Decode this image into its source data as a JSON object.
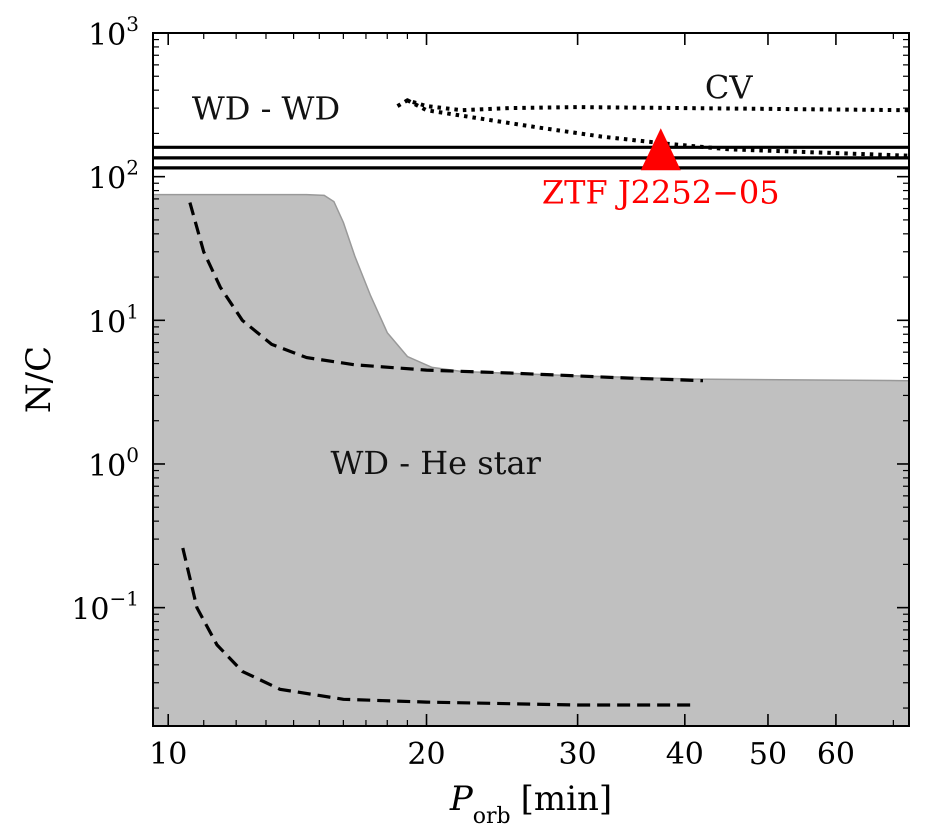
{
  "chart_data": {
    "type": "line",
    "x_scale": "log",
    "y_scale": "log",
    "xlim": [
      9.6,
      73
    ],
    "ylim": [
      0.015,
      1000
    ],
    "xlabel_main": "P",
    "xlabel_sub": "orb",
    "xlabel_unit": "[min]",
    "ylabel": "N/C",
    "x_ticks": [
      {
        "value": 10,
        "label": "10"
      },
      {
        "value": 20,
        "label": "20"
      },
      {
        "value": 30,
        "label": "30"
      },
      {
        "value": 40,
        "label": "40"
      },
      {
        "value": 50,
        "label": "50"
      },
      {
        "value": 60,
        "label": "60"
      }
    ],
    "y_ticks": [
      {
        "value": 0.1,
        "base": "10",
        "exp": "−1"
      },
      {
        "value": 1,
        "base": "10",
        "exp": "0"
      },
      {
        "value": 10,
        "base": "10",
        "exp": "1"
      },
      {
        "value": 100,
        "base": "10",
        "exp": "2"
      },
      {
        "value": 1000,
        "base": "10",
        "exp": "3"
      }
    ],
    "regions": [
      {
        "label": "WD - He star",
        "label_at": [
          20.5,
          0.85
        ],
        "fill": "#c0c0c0",
        "edge": "#999999",
        "boundary": [
          [
            9.6,
            0.015
          ],
          [
            9.6,
            75
          ],
          [
            14.5,
            75
          ],
          [
            15.2,
            74
          ],
          [
            15.6,
            67
          ],
          [
            16.0,
            48
          ],
          [
            16.5,
            28
          ],
          [
            17.2,
            15
          ],
          [
            18.0,
            8.2
          ],
          [
            19.0,
            5.6
          ],
          [
            20.3,
            4.7
          ],
          [
            22,
            4.4
          ],
          [
            30,
            4.1
          ],
          [
            41,
            3.9
          ],
          [
            73,
            3.8
          ],
          [
            73,
            0.015
          ]
        ]
      }
    ],
    "series": [
      {
        "style": "dashed",
        "color": "#000000",
        "points": [
          [
            10.6,
            66
          ],
          [
            11.0,
            30
          ],
          [
            11.5,
            17
          ],
          [
            12.2,
            10
          ],
          [
            13.2,
            6.8
          ],
          [
            14.5,
            5.5
          ],
          [
            16.5,
            4.9
          ],
          [
            20,
            4.5
          ],
          [
            25,
            4.3
          ],
          [
            33,
            4.0
          ],
          [
            42,
            3.8
          ]
        ]
      },
      {
        "style": "dashed",
        "color": "#000000",
        "points": [
          [
            10.4,
            0.26
          ],
          [
            10.8,
            0.1
          ],
          [
            11.4,
            0.055
          ],
          [
            12.2,
            0.036
          ],
          [
            13.5,
            0.027
          ],
          [
            16,
            0.023
          ],
          [
            20,
            0.022
          ],
          [
            30,
            0.021
          ],
          [
            41,
            0.021
          ]
        ]
      },
      {
        "style": "dotted",
        "color": "#000000",
        "points": [
          [
            18.5,
            310
          ],
          [
            19.0,
            340
          ],
          [
            20,
            310
          ],
          [
            22,
            290
          ],
          [
            25,
            300
          ],
          [
            30,
            305
          ],
          [
            40,
            300
          ],
          [
            73,
            290
          ]
        ]
      },
      {
        "style": "dotted",
        "color": "#000000",
        "points": [
          [
            19.0,
            340
          ],
          [
            20,
            290
          ],
          [
            23,
            255
          ],
          [
            27,
            220
          ],
          [
            32,
            190
          ],
          [
            38,
            170
          ],
          [
            45,
            155
          ],
          [
            73,
            140
          ]
        ]
      },
      {
        "style": "solid",
        "color": "#000000",
        "points": [
          [
            9.6,
            160
          ],
          [
            73,
            160
          ]
        ]
      },
      {
        "style": "solid",
        "color": "#000000",
        "points": [
          [
            9.6,
            135
          ],
          [
            73,
            135
          ]
        ]
      },
      {
        "style": "solid",
        "color": "#000000",
        "points": [
          [
            9.6,
            115
          ],
          [
            73,
            115
          ]
        ]
      }
    ],
    "annotations": [
      {
        "text": "CV",
        "x": 45,
        "y": 350,
        "color": "#000000",
        "anchor": "middle"
      },
      {
        "text": "WD - WD",
        "x": 13.0,
        "y": 250,
        "color": "#000000",
        "anchor": "middle"
      }
    ],
    "markers": [
      {
        "label": "ZTF J2252−05",
        "x": 37.5,
        "y": 150,
        "shape": "triangle",
        "color": "#ff0000",
        "label_y": 65
      }
    ]
  }
}
